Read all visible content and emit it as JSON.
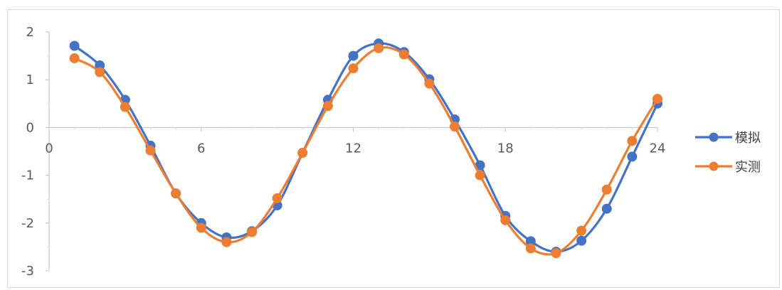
{
  "chart_data": {
    "type": "line",
    "smooth": true,
    "title": "",
    "xlabel": "",
    "ylabel": "",
    "xlim": [
      0,
      24
    ],
    "ylim": [
      -3,
      2
    ],
    "x_ticks": [
      0,
      6,
      12,
      18,
      24
    ],
    "y_ticks": [
      2,
      1,
      0,
      -1,
      -2,
      -3
    ],
    "grid": false,
    "legend_position": "right",
    "x": [
      1,
      2,
      3,
      4,
      5,
      6,
      7,
      8,
      9,
      10,
      11,
      12,
      13,
      14,
      15,
      16,
      17,
      18,
      19,
      20,
      21,
      22,
      23,
      24
    ],
    "series": [
      {
        "name": "模拟",
        "color": "#4472C4",
        "values": [
          1.71,
          1.3,
          0.58,
          -0.38,
          -1.38,
          -2.0,
          -2.3,
          -2.17,
          -1.63,
          -0.53,
          0.58,
          1.5,
          1.76,
          1.58,
          1.01,
          0.17,
          -0.79,
          -1.85,
          -2.38,
          -2.6,
          -2.37,
          -1.7,
          -0.61,
          0.5
        ]
      },
      {
        "name": "实测",
        "color": "#ED7D31",
        "values": [
          1.45,
          1.16,
          0.43,
          -0.48,
          -1.38,
          -2.1,
          -2.4,
          -2.19,
          -1.48,
          -0.53,
          0.45,
          1.24,
          1.66,
          1.53,
          0.92,
          0.02,
          -1.0,
          -1.94,
          -2.53,
          -2.63,
          -2.16,
          -1.3,
          -0.28,
          0.6
        ]
      }
    ]
  }
}
